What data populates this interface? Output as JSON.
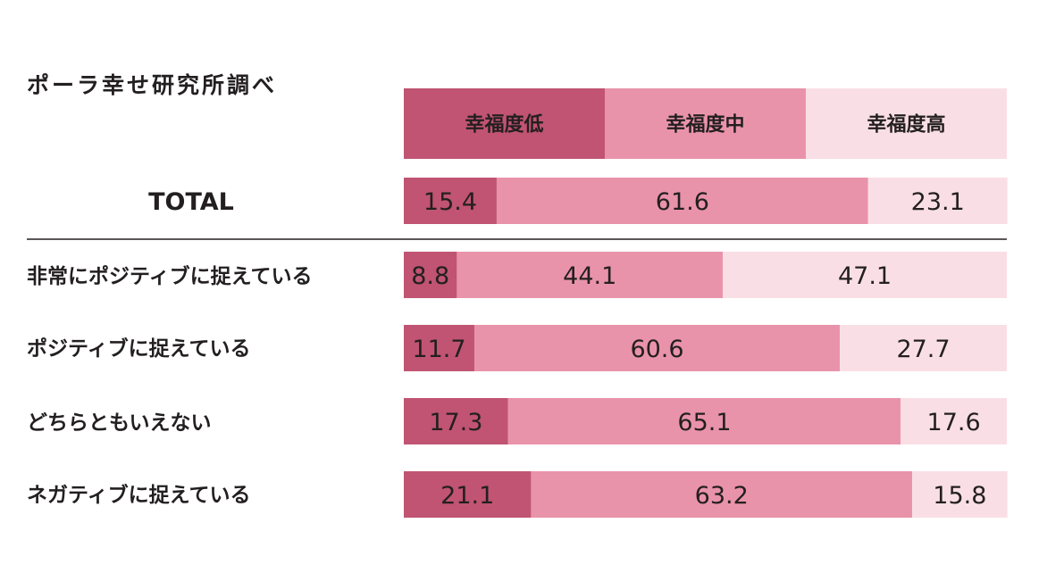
{
  "source_note": "ポーラ幸せ研究所調べ",
  "chart_data": {
    "type": "bar",
    "orientation": "horizontal",
    "stacked": "percent",
    "xlim": [
      0,
      100
    ],
    "legend_position": "top",
    "categories": [
      "TOTAL",
      "非常にポジティブに捉えている",
      "ポジティブに捉えている",
      "どちらともいえない",
      "ネガティブに捉えている"
    ],
    "series": [
      {
        "name": "幸福度低",
        "color": "#c05472",
        "values": [
          15.4,
          8.8,
          11.7,
          17.3,
          21.1
        ]
      },
      {
        "name": "幸福度中",
        "color": "#e993aa",
        "values": [
          61.6,
          44.1,
          60.6,
          65.1,
          63.2
        ]
      },
      {
        "name": "幸福度高",
        "color": "#f9dfe5",
        "values": [
          23.1,
          47.1,
          27.7,
          17.6,
          15.8
        ]
      }
    ],
    "separator_after": "TOTAL"
  }
}
